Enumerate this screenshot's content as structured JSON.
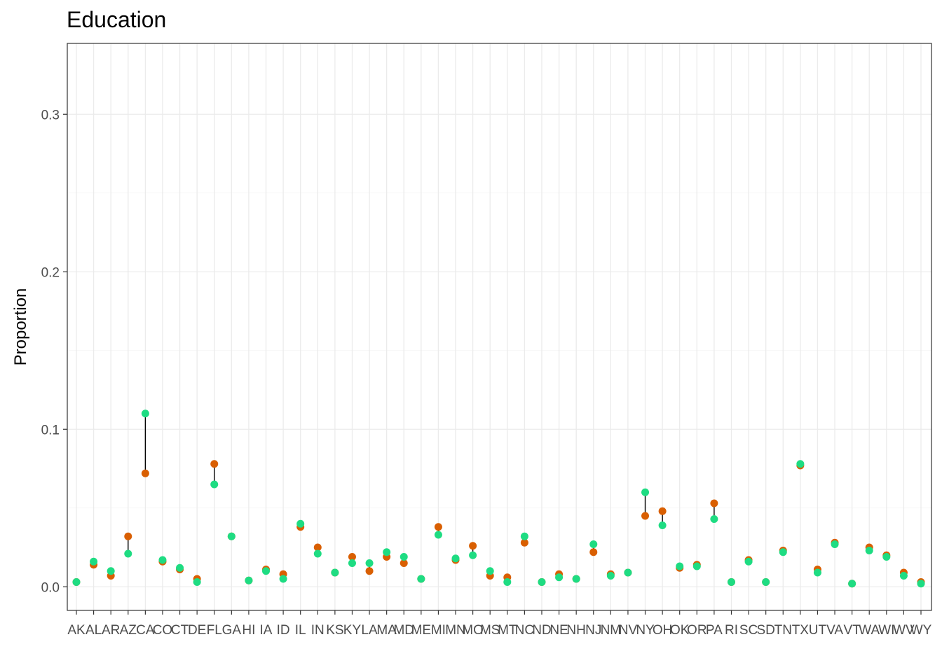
{
  "chart_data": {
    "type": "scatter",
    "title": "Education",
    "xlabel": "",
    "ylabel": "Proportion",
    "ylim": [
      -0.015,
      0.345
    ],
    "yticks": [
      0.0,
      0.1,
      0.2,
      0.3
    ],
    "ytick_labels": [
      "0.0",
      "0.1",
      "0.2",
      "0.3"
    ],
    "grid": true,
    "legend": "none",
    "categories": [
      "AK",
      "AL",
      "AR",
      "AZ",
      "CA",
      "CO",
      "CT",
      "DE",
      "FL",
      "GA",
      "HI",
      "IA",
      "ID",
      "IL",
      "IN",
      "KS",
      "KY",
      "LA",
      "MA",
      "MD",
      "ME",
      "MI",
      "MN",
      "MO",
      "MS",
      "MT",
      "NC",
      "ND",
      "NE",
      "NH",
      "NJ",
      "NM",
      "NV",
      "NY",
      "OH",
      "OK",
      "OR",
      "PA",
      "RI",
      "SC",
      "SD",
      "TN",
      "TX",
      "UT",
      "VA",
      "VT",
      "WA",
      "WI",
      "WV",
      "WY"
    ],
    "series": [
      {
        "color": "#d95f02",
        "values": [
          0.003,
          0.014,
          0.007,
          0.032,
          0.072,
          0.016,
          0.011,
          0.005,
          0.078,
          0.032,
          0.004,
          0.011,
          0.008,
          0.038,
          0.025,
          0.009,
          0.019,
          0.01,
          0.019,
          0.015,
          0.005,
          0.038,
          0.017,
          0.026,
          0.007,
          0.006,
          0.028,
          0.003,
          0.008,
          0.005,
          0.022,
          0.008,
          0.009,
          0.045,
          0.048,
          0.012,
          0.014,
          0.053,
          0.003,
          0.017,
          0.003,
          0.023,
          0.077,
          0.011,
          0.028,
          0.002,
          0.025,
          0.02,
          0.009,
          0.003
        ]
      },
      {
        "color": "#1edc82",
        "values": [
          0.003,
          0.016,
          0.01,
          0.021,
          0.11,
          0.017,
          0.012,
          0.003,
          0.065,
          0.032,
          0.004,
          0.01,
          0.005,
          0.04,
          0.021,
          0.009,
          0.015,
          0.015,
          0.022,
          0.019,
          0.005,
          0.033,
          0.018,
          0.02,
          0.01,
          0.003,
          0.032,
          0.003,
          0.006,
          0.005,
          0.027,
          0.007,
          0.009,
          0.06,
          0.039,
          0.013,
          0.013,
          0.043,
          0.003,
          0.016,
          0.003,
          0.022,
          0.078,
          0.009,
          0.027,
          0.002,
          0.023,
          0.019,
          0.007,
          0.002
        ]
      }
    ]
  }
}
